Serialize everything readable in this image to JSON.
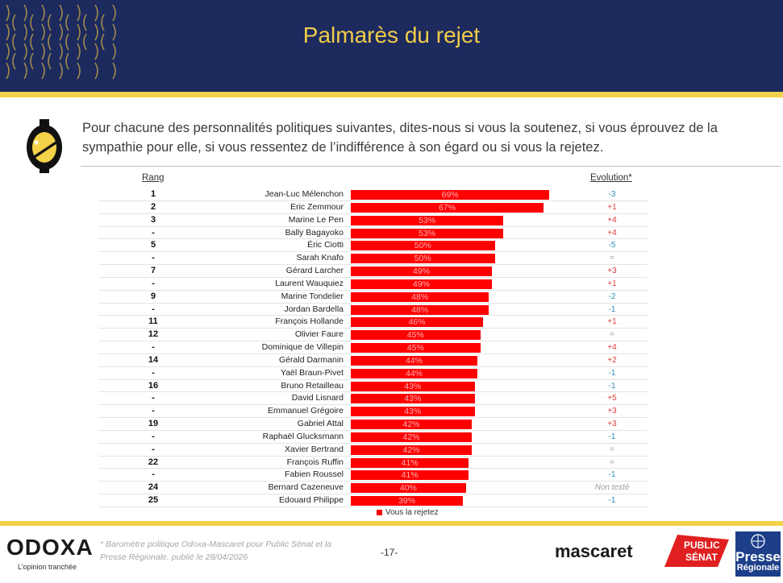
{
  "header": {
    "title": "Palmarès du rejet"
  },
  "question": {
    "text": "Pour chacune des personnalités politiques suivantes, dites-nous si vous la soutenez, si vous éprouvez de la sympathie pour elle, si vous ressentez de l’indifférence à son égard ou si vous la rejetez."
  },
  "columns": {
    "rank": "Rang",
    "evolution": "Evolution*"
  },
  "chart_data": {
    "type": "bar",
    "orientation": "horizontal",
    "categories": [
      "Jean-Luc Mélenchon",
      "Eric Zemmour",
      "Marine Le Pen",
      "Bally Bagayoko",
      "Éric Ciotti",
      "Sarah Knafo",
      "Gérard Larcher",
      "Laurent Wauquiez",
      "Marine Tondelier",
      "Jordan Bardella",
      "François Hollande",
      "Olivier Faure",
      "Dominique de Villepin",
      "Gérald Darmanin",
      "Yaël Braun-Pivet",
      "Bruno Retailleau",
      "David Lisnard",
      "Emmanuel Grégoire",
      "Gabriel Attal",
      "Raphaël Glucksmann",
      "Xavier Bertrand",
      "François Ruffin",
      "Fabien Roussel",
      "Bernard Cazeneuve",
      "Edouard Philippe"
    ],
    "ranks": [
      "1",
      "2",
      "3",
      "-",
      "5",
      "-",
      "7",
      "-",
      "9",
      "-",
      "11",
      "12",
      "-",
      "14",
      "-",
      "16",
      "-",
      "-",
      "19",
      "-",
      "-",
      "22",
      "-",
      "24",
      "25"
    ],
    "values": [
      69,
      67,
      53,
      53,
      50,
      50,
      49,
      49,
      48,
      48,
      46,
      45,
      45,
      44,
      44,
      43,
      43,
      43,
      42,
      42,
      42,
      41,
      41,
      40,
      39
    ],
    "value_labels": [
      "69%",
      "67%",
      "53%",
      "53%",
      "50%",
      "50%",
      "49%",
      "49%",
      "48%",
      "48%",
      "46%",
      "45%",
      "45%",
      "44%",
      "44%",
      "43%",
      "43%",
      "43%",
      "42%",
      "42%",
      "42%",
      "41%",
      "41%",
      "40%",
      "39%"
    ],
    "evolution": [
      "-3",
      "+1",
      "+4",
      "+4",
      "-5",
      "=",
      "+3",
      "+1",
      "-2",
      "-1",
      "+1",
      "=",
      "+4",
      "+2",
      "-1",
      "-1",
      "+5",
      "+3",
      "+3",
      "-1",
      "=",
      "=",
      "-1",
      "Non testé",
      "-1"
    ],
    "series": [
      {
        "name": "Vous la rejetez",
        "color": "#ff0000"
      }
    ],
    "xlim": [
      0,
      100
    ]
  },
  "colors": {
    "positive": "#e03a3a",
    "negative": "#2f8fb5",
    "neutral": "#9a9a9a"
  },
  "footer": {
    "brand": "ODOXA",
    "tagline": "L’opinion tranchée",
    "footnote": "* Baromètre politique Odoxa-Mascaret pour Public Sénat et la Presse Régionale, publié le 28/04/2026",
    "page": "-17-",
    "partner1": "mascaret",
    "partner2_line1": "PUBLIC",
    "partner2_line2": "SÉNAT",
    "partner3_line1": "Presse",
    "partner3_line2": "Régionale"
  }
}
